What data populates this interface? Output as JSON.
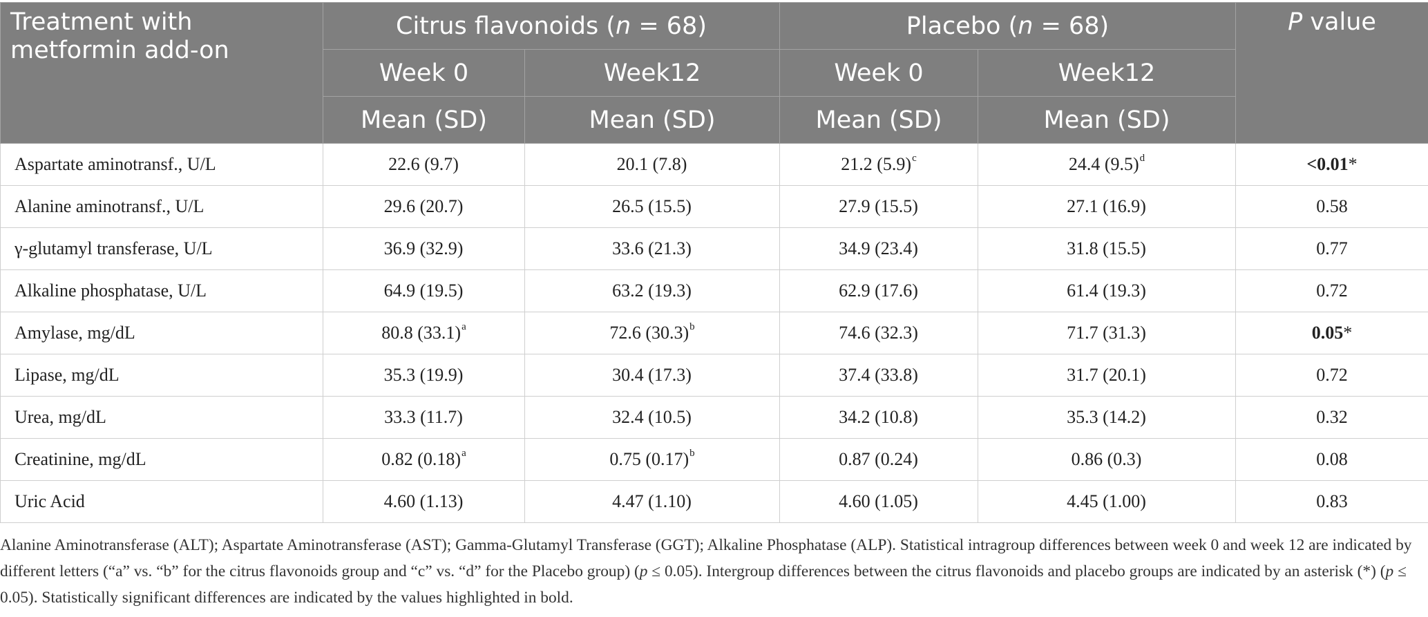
{
  "header": {
    "treatment_line1": "Treatment with",
    "treatment_line2": "metformin add-on",
    "citrus_label": "Citrus flavonoids (",
    "citrus_n_italic": "n",
    "citrus_n_rest": " = 68)",
    "placebo_label": "Placebo (",
    "placebo_n_italic": "n",
    "placebo_n_rest": " = 68)",
    "p_italic": "P",
    "p_rest": " value",
    "week0": "Week 0",
    "week12": "Week12",
    "mean_sd": "Mean (SD)"
  },
  "rows": [
    {
      "param": "Aspartate aminotransf., U/L",
      "c0": "22.6 (9.7)",
      "c0_sup": "",
      "c12": "20.1 (7.8)",
      "c12_sup": "",
      "p0": "21.2 (5.9)",
      "p0_sup": "c",
      "p12": "24.4 (9.5)",
      "p12_sup": "d",
      "pval_bold": "<0.01",
      "pval_rest": "*"
    },
    {
      "param": "Alanine aminotransf., U/L",
      "c0": "29.6 (20.7)",
      "c0_sup": "",
      "c12": "26.5 (15.5)",
      "c12_sup": "",
      "p0": "27.9 (15.5)",
      "p0_sup": "",
      "p12": "27.1 (16.9)",
      "p12_sup": "",
      "pval_bold": "",
      "pval_rest": "0.58"
    },
    {
      "param": "γ-glutamyl transferase, U/L",
      "c0": "36.9 (32.9)",
      "c0_sup": "",
      "c12": "33.6 (21.3)",
      "c12_sup": "",
      "p0": "34.9 (23.4)",
      "p0_sup": "",
      "p12": "31.8 (15.5)",
      "p12_sup": "",
      "pval_bold": "",
      "pval_rest": "0.77"
    },
    {
      "param": "Alkaline phosphatase, U/L",
      "c0": "64.9 (19.5)",
      "c0_sup": "",
      "c12": "63.2 (19.3)",
      "c12_sup": "",
      "p0": "62.9 (17.6)",
      "p0_sup": "",
      "p12": "61.4 (19.3)",
      "p12_sup": "",
      "pval_bold": "",
      "pval_rest": "0.72"
    },
    {
      "param": "Amylase, mg/dL",
      "c0": "80.8 (33.1)",
      "c0_sup": "a",
      "c12": "72.6 (30.3)",
      "c12_sup": "b",
      "p0": "74.6 (32.3)",
      "p0_sup": "",
      "p12": "71.7 (31.3)",
      "p12_sup": "",
      "pval_bold": "0.05",
      "pval_rest": "*"
    },
    {
      "param": "Lipase, mg/dL",
      "c0": "35.3 (19.9)",
      "c0_sup": "",
      "c12": "30.4 (17.3)",
      "c12_sup": "",
      "p0": "37.4 (33.8)",
      "p0_sup": "",
      "p12": "31.7 (20.1)",
      "p12_sup": "",
      "pval_bold": "",
      "pval_rest": "0.72"
    },
    {
      "param": "Urea, mg/dL",
      "c0": "33.3 (11.7)",
      "c0_sup": "",
      "c12": "32.4 (10.5)",
      "c12_sup": "",
      "p0": "34.2 (10.8)",
      "p0_sup": "",
      "p12": "35.3 (14.2)",
      "p12_sup": "",
      "pval_bold": "",
      "pval_rest": "0.32"
    },
    {
      "param": "Creatinine, mg/dL",
      "c0": "0.82 (0.18)",
      "c0_sup": "a",
      "c12": "0.75 (0.17)",
      "c12_sup": "b",
      "p0": "0.87 (0.24)",
      "p0_sup": "",
      "p12": "0.86 (0.3)",
      "p12_sup": "",
      "pval_bold": "",
      "pval_rest": "0.08"
    },
    {
      "param": "Uric Acid",
      "c0": "4.60 (1.13)",
      "c0_sup": "",
      "c12": "4.47 (1.10)",
      "c12_sup": "",
      "p0": "4.60 (1.05)",
      "p0_sup": "",
      "p12": "4.45 (1.00)",
      "p12_sup": "",
      "pval_bold": "",
      "pval_rest": "0.83"
    }
  ],
  "footnote": {
    "part1": "Alanine Aminotransferase (ALT); Aspartate Aminotransferase (AST); Gamma-Glutamyl Transferase (GGT); Alkaline Phosphatase (ALP). Statistical intragroup differences between week 0 and week 12 are indicated by different letters (“a” vs. “b” for the citrus flavonoids group and “c” vs. “d” for the Placebo group) (",
    "p1": "p",
    "part2": " ≤ 0.05). Intergroup differences between the citrus flavonoids and placebo groups are indicated by an asterisk (*) (",
    "p2": "p",
    "part3": " ≤ 0.05). Statistically significant differences are indicated by the values highlighted in bold."
  }
}
